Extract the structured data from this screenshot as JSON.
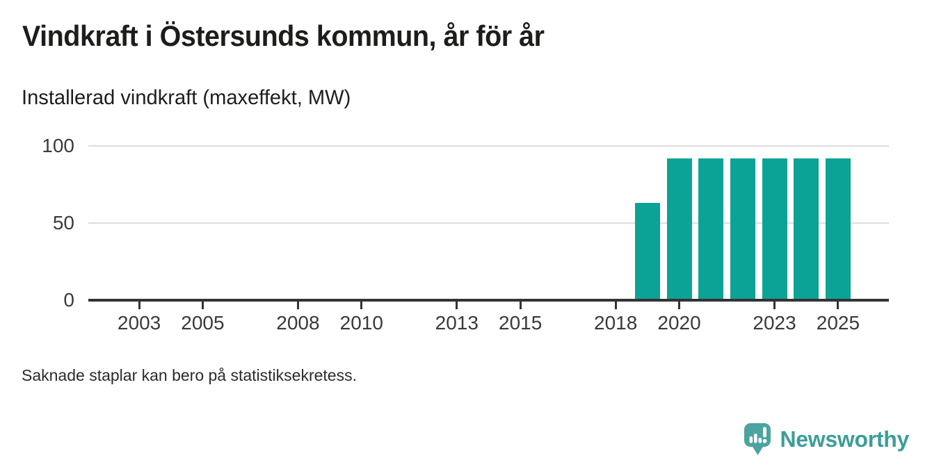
{
  "chart_data": {
    "type": "bar",
    "title": "Vindkraft i Östersunds kommun, år för år",
    "subtitle": "Installerad vindkraft (maxeffekt, MW)",
    "ylabel": "MW",
    "x": [
      2019,
      2020,
      2021,
      2022,
      2023,
      2024,
      2025
    ],
    "values": [
      63,
      92,
      92,
      92,
      92,
      92,
      92
    ],
    "xticks": [
      2003,
      2005,
      2008,
      2010,
      2013,
      2015,
      2018,
      2020,
      2023,
      2025
    ],
    "yticks": [
      0,
      50,
      100
    ],
    "xlim": [
      2001.4,
      2026.6
    ],
    "ylim": [
      0,
      100
    ],
    "grid": true,
    "legend": "none",
    "bar_color": "#0aa396"
  },
  "footer": {
    "note": "Saknade staplar kan bero på statistiksekretess.",
    "brand": "Newsworthy"
  },
  "colors": {
    "bar": "#0aa396",
    "axis_line": "#333333",
    "gridline": "#dcdcdc",
    "text": "#1d1d1b",
    "axis_text": "#3a3a3a",
    "logo_icon": "#4ba49f",
    "logo_text": "#3d9d99"
  }
}
